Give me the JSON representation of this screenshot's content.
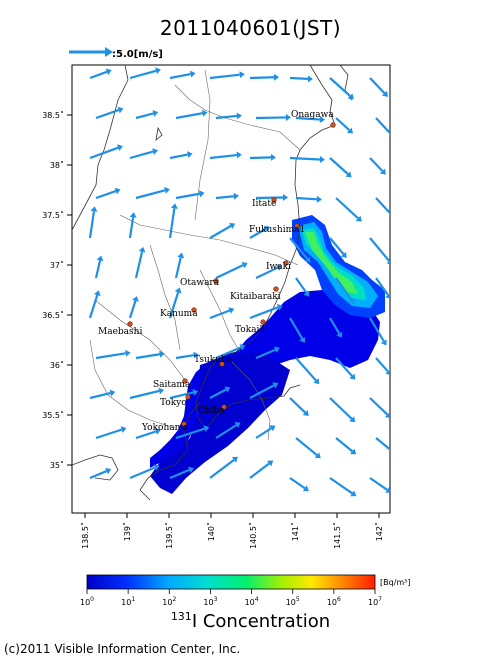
{
  "title": "2011040601(JST)",
  "scale": {
    "label": ":5.0[m/s]"
  },
  "axes": {
    "lat_ticks": [
      "38.5˚",
      "38˚",
      "37.5˚",
      "37˚",
      "36.5˚",
      "36˚",
      "35.5˚",
      "35˚"
    ],
    "lon_ticks": [
      "138.5˚",
      "139˚",
      "139.5˚",
      "140˚",
      "140.5˚",
      "141˚",
      "141.5˚",
      "142˚"
    ]
  },
  "places": [
    {
      "name": "Onagawa"
    },
    {
      "name": "Iitate"
    },
    {
      "name": "Fukushima1"
    },
    {
      "name": "Iwaki"
    },
    {
      "name": "Otawara"
    },
    {
      "name": "Kitaibaraki"
    },
    {
      "name": "Kanuma"
    },
    {
      "name": "Tokai2"
    },
    {
      "name": "Maebashi"
    },
    {
      "name": "Tsukuba"
    },
    {
      "name": "Saitama"
    },
    {
      "name": "Tokyo"
    },
    {
      "name": "Chiba"
    },
    {
      "name": "Yokohama"
    }
  ],
  "colorbar": {
    "unit": "[Bq/m³]",
    "ticks": [
      {
        "base": "10",
        "exp": "0"
      },
      {
        "base": "10",
        "exp": "1"
      },
      {
        "base": "10",
        "exp": "2"
      },
      {
        "base": "10",
        "exp": "3"
      },
      {
        "base": "10",
        "exp": "4"
      },
      {
        "base": "10",
        "exp": "5"
      },
      {
        "base": "10",
        "exp": "6"
      },
      {
        "base": "10",
        "exp": "7"
      }
    ],
    "title_sup": "131",
    "title_text": "I Concentration",
    "colors": [
      "#0000c8",
      "#0028ff",
      "#00a0ff",
      "#00e0e0",
      "#00f080",
      "#a0f000",
      "#ffe000",
      "#ff8000",
      "#ff2000"
    ]
  },
  "copyright": "(c)2011 Visible Information Center, Inc.",
  "colors": {
    "arrow": "#1e90e6",
    "plume_core": "#0000e0"
  }
}
